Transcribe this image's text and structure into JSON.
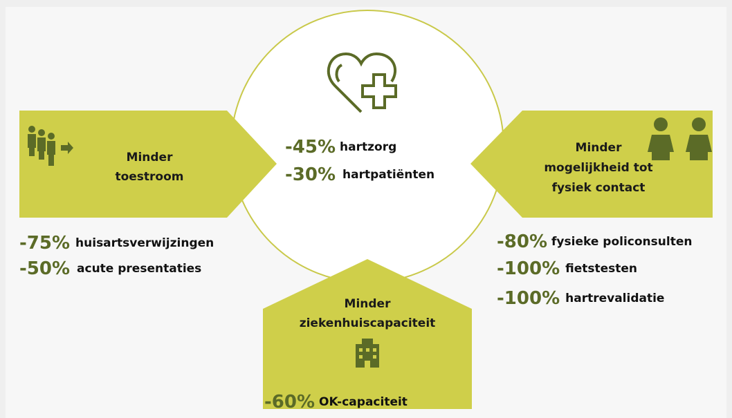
{
  "center": {
    "stats": [
      {
        "value": "-45%",
        "label": "hartzorg"
      },
      {
        "value": "-30%",
        "label": "hartpatiënten"
      }
    ]
  },
  "left": {
    "title": [
      "Minder",
      "toestroom"
    ],
    "stats": [
      {
        "value": "-75%",
        "label": "huisartsverwijzingen"
      },
      {
        "value": "-50%",
        "label": "acute presentaties"
      }
    ]
  },
  "right": {
    "title": [
      "Minder",
      "mogelijkheid tot",
      "fysiek contact"
    ],
    "stats": [
      {
        "value": "-80%",
        "label": "fysieke policonsulten"
      },
      {
        "value": "-100%",
        "label": "fietstesten"
      },
      {
        "value": "-100%",
        "label": "hartrevalidatie"
      }
    ]
  },
  "bottom": {
    "title": [
      "Minder",
      "ziekenhuiscapaciteit"
    ],
    "stats": [
      {
        "value": "-60%",
        "label": "OK-capaciteit"
      }
    ]
  }
}
